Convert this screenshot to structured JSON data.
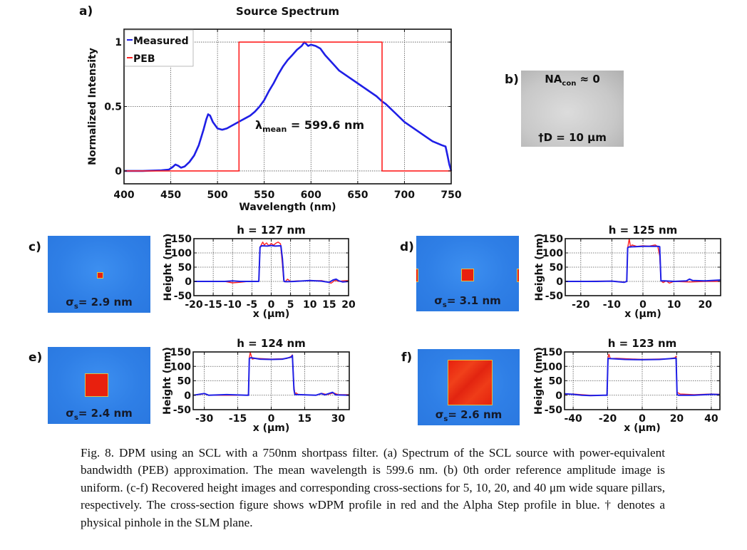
{
  "panels": {
    "a": {
      "label": "a)"
    },
    "b": {
      "label": "b)",
      "top_text_main": "NA",
      "top_text_sub": "con",
      "top_text_rest": " ≈ 0",
      "bottom_text": "†D = 10 μm"
    },
    "c": {
      "label": "c)",
      "sigma_main": "σ",
      "sigma_sub": "s",
      "sigma_rest": "= 2.9 nm"
    },
    "d": {
      "label": "d)",
      "sigma_main": "σ",
      "sigma_sub": "s",
      "sigma_rest": "= 3.1 nm"
    },
    "e": {
      "label": "e)",
      "sigma_main": "σ",
      "sigma_sub": "s",
      "sigma_rest": "= 2.4 nm"
    },
    "f": {
      "label": "f)",
      "sigma_main": "σ",
      "sigma_sub": "s",
      "sigma_rest": "= 2.6 nm"
    }
  },
  "colors": {
    "measured": "#1f1fe6",
    "peb": "#ff2020",
    "wdpm": "#ff2020",
    "alphastep": "#1f1fe6",
    "height_map_bg": "#2f7fe6",
    "pillar": "#e8200e"
  },
  "chart_data": [
    {
      "id": "a",
      "type": "line",
      "title": "Source Spectrum",
      "xlabel": "Wavelength (nm)",
      "ylabel": "Normalized Intensity",
      "xlim": [
        400,
        750
      ],
      "ylim": [
        -0.1,
        1.1
      ],
      "xticks": [
        400,
        450,
        500,
        550,
        600,
        650,
        700,
        750
      ],
      "yticks": [
        0,
        0.5,
        1
      ],
      "ytick_labels": [
        "0",
        "0.5",
        "1"
      ],
      "grid": true,
      "legend": {
        "position": "top-left",
        "entries": [
          "Measured",
          "PEB"
        ]
      },
      "annotation": {
        "main": "λ",
        "sub": "mean",
        "rest": " = 599.6 nm"
      },
      "series": [
        {
          "name": "Measured",
          "x": [
            400,
            420,
            440,
            448,
            452,
            455,
            458,
            461,
            465,
            470,
            475,
            480,
            485,
            488,
            490,
            492,
            495,
            500,
            505,
            510,
            515,
            520,
            525,
            530,
            535,
            540,
            545,
            550,
            555,
            560,
            565,
            570,
            575,
            580,
            585,
            590,
            593,
            597,
            600,
            605,
            610,
            615,
            620,
            625,
            630,
            640,
            650,
            660,
            670,
            676,
            680,
            690,
            700,
            710,
            720,
            730,
            740,
            744,
            746,
            748,
            750
          ],
          "y": [
            0.0,
            0.0,
            0.005,
            0.01,
            0.03,
            0.05,
            0.04,
            0.025,
            0.035,
            0.07,
            0.12,
            0.2,
            0.32,
            0.4,
            0.44,
            0.43,
            0.38,
            0.33,
            0.32,
            0.33,
            0.35,
            0.37,
            0.39,
            0.41,
            0.43,
            0.46,
            0.5,
            0.55,
            0.62,
            0.68,
            0.75,
            0.81,
            0.86,
            0.9,
            0.94,
            0.97,
            1.0,
            0.97,
            0.98,
            0.97,
            0.95,
            0.9,
            0.86,
            0.82,
            0.78,
            0.73,
            0.68,
            0.63,
            0.58,
            0.54,
            0.52,
            0.45,
            0.38,
            0.33,
            0.28,
            0.23,
            0.2,
            0.19,
            0.12,
            0.05,
            0.0
          ]
        },
        {
          "name": "PEB",
          "x": [
            400,
            523,
            523,
            676,
            676,
            750
          ],
          "y": [
            0,
            0,
            1,
            1,
            0,
            0
          ]
        }
      ]
    },
    {
      "id": "c",
      "type": "line",
      "title": "h = 127 nm",
      "xlabel": "x (μm)",
      "ylabel": "Height (nm)",
      "xlim": [
        -20,
        20
      ],
      "ylim": [
        -50,
        150
      ],
      "xticks": [
        -20,
        -15,
        -10,
        -5,
        0,
        5,
        10,
        15,
        20
      ],
      "yticks": [
        -50,
        0,
        50,
        100,
        150
      ],
      "grid": true,
      "series": [
        {
          "name": "wDPM",
          "x": [
            -20,
            -12,
            -10,
            -8,
            -6,
            -3.2,
            -2.9,
            -2.2,
            -1.8,
            -1.2,
            -0.6,
            0,
            0.6,
            1.2,
            1.8,
            2.4,
            2.9,
            3.2,
            3.6,
            4.2,
            5,
            7,
            10,
            13,
            14.5,
            15.5,
            16.5,
            17.5,
            18.5,
            20
          ],
          "y": [
            0,
            0,
            -5,
            -3,
            0,
            0,
            120,
            138,
            128,
            135,
            125,
            133,
            127,
            134,
            138,
            132,
            60,
            5,
            -2,
            8,
            0,
            2,
            2,
            3,
            -2,
            -6,
            4,
            0,
            2,
            3
          ]
        },
        {
          "name": "Alpha Step",
          "x": [
            -20,
            -12,
            -10,
            -8,
            -5,
            -3.2,
            -2.9,
            -2.5,
            -1,
            0,
            1,
            2.5,
            2.9,
            3.3,
            4,
            6,
            10,
            13,
            15,
            16,
            16.8,
            17.5,
            18.5,
            20
          ],
          "y": [
            0,
            0,
            2,
            0,
            0,
            0,
            120,
            125,
            124,
            126,
            124,
            125,
            80,
            0,
            -1,
            0,
            3,
            1,
            -3,
            5,
            8,
            2,
            -2,
            0
          ]
        }
      ]
    },
    {
      "id": "d",
      "type": "line",
      "title": "h = 125 nm",
      "xlabel": "x (μm)",
      "ylabel": "Height (nm)",
      "xlim": [
        -25,
        25
      ],
      "ylim": [
        -50,
        150
      ],
      "xticks": [
        -20,
        -10,
        0,
        10,
        20
      ],
      "yticks": [
        -50,
        0,
        50,
        100,
        150
      ],
      "grid": true,
      "series": [
        {
          "name": "wDPM",
          "x": [
            -25,
            -15,
            -10,
            -6,
            -5.2,
            -4.9,
            -4.4,
            -4,
            -3.5,
            -2,
            0,
            2,
            4,
            4.8,
            5.4,
            5.8,
            6.5,
            7.5,
            8.5,
            10,
            15,
            20,
            25
          ],
          "y": [
            0,
            1,
            1,
            -2,
            0,
            118,
            150,
            120,
            128,
            123,
            125,
            124,
            128,
            122,
            90,
            2,
            -4,
            2,
            -6,
            0,
            -2,
            0,
            0
          ]
        },
        {
          "name": "Alpha Step",
          "x": [
            -25,
            -15,
            -10,
            -6,
            -5.2,
            -4.9,
            -4.5,
            0,
            4.8,
            5.4,
            5.8,
            7,
            10,
            14,
            15,
            16,
            20,
            25
          ],
          "y": [
            0,
            0,
            1,
            -3,
            0,
            118,
            121,
            123,
            123,
            122,
            2,
            2,
            0,
            2,
            8,
            3,
            2,
            5
          ]
        }
      ]
    },
    {
      "id": "e",
      "type": "line",
      "title": "h = 124 nm",
      "xlabel": "x (μm)",
      "ylabel": "Height (nm)",
      "xlim": [
        -35,
        35
      ],
      "ylim": [
        -50,
        150
      ],
      "xticks": [
        -30,
        -15,
        0,
        15,
        30
      ],
      "yticks": [
        -50,
        0,
        50,
        100,
        150
      ],
      "grid": true,
      "series": [
        {
          "name": "wDPM",
          "x": [
            -35,
            -30,
            -28,
            -20,
            -11,
            -10.2,
            -9.8,
            -9.4,
            -8.5,
            -7,
            0,
            7,
            9,
            9.5,
            10.2,
            10.6,
            11.2,
            12,
            14,
            20,
            23,
            25,
            28,
            30,
            35
          ],
          "y": [
            0,
            5,
            0,
            0,
            0,
            2,
            130,
            148,
            125,
            128,
            125,
            127,
            135,
            140,
            30,
            5,
            8,
            3,
            2,
            0,
            6,
            2,
            8,
            2,
            2
          ]
        },
        {
          "name": "Alpha Step",
          "x": [
            -35,
            -30,
            -28,
            -20,
            -11,
            -10.2,
            -9.8,
            -9,
            -5,
            0,
            5,
            9,
            9.5,
            10.2,
            10.6,
            12,
            20,
            22.5,
            24,
            27.5,
            29,
            35
          ],
          "y": [
            0,
            6,
            0,
            2,
            0,
            0,
            128,
            130,
            125,
            124,
            125,
            132,
            138,
            20,
            2,
            2,
            0,
            6,
            1,
            10,
            1,
            0
          ]
        }
      ]
    },
    {
      "id": "f",
      "type": "line",
      "title": "h = 123 nm",
      "xlabel": "x (μm)",
      "ylabel": "Height (nm)",
      "xlim": [
        -45,
        45
      ],
      "ylim": [
        -50,
        150
      ],
      "xticks": [
        -40,
        -20,
        0,
        20,
        40
      ],
      "yticks": [
        -50,
        0,
        50,
        100,
        150
      ],
      "grid": true,
      "series": [
        {
          "name": "wDPM",
          "x": [
            -45,
            -40,
            -30,
            -22,
            -20.4,
            -19.8,
            -19.3,
            -18.5,
            -15,
            0,
            15,
            19,
            19.6,
            20.2,
            20.8,
            22,
            30,
            40,
            45
          ],
          "y": [
            3,
            4,
            0,
            0,
            0,
            130,
            142,
            127,
            128,
            124,
            126,
            130,
            135,
            10,
            8,
            4,
            2,
            4,
            3
          ]
        },
        {
          "name": "Alpha Step",
          "x": [
            -45,
            -40,
            -35,
            -30,
            -22,
            -20.4,
            -19.8,
            -19,
            -10,
            0,
            10,
            19,
            19.6,
            20.2,
            21,
            30,
            40,
            45
          ],
          "y": [
            5,
            3,
            0,
            -1,
            0,
            0,
            128,
            127,
            124,
            123,
            124,
            128,
            128,
            2,
            0,
            0,
            3,
            2
          ]
        }
      ]
    }
  ],
  "caption": "Fig. 8. DPM using an SCL with a 750nm shortpass filter. (a) Spectrum of the SCL source with power-equivalent bandwidth (PEB) approximation. The mean wavelength is 599.6 nm. (b) 0th order reference amplitude image is uniform. (c-f) Recovered height images and corresponding cross-sections for 5, 10, 20, and 40 μm wide square pillars, respectively. The cross-section figure shows wDPM profile in red and the Alpha Step profile in blue. † denotes a physical pinhole in the SLM plane."
}
